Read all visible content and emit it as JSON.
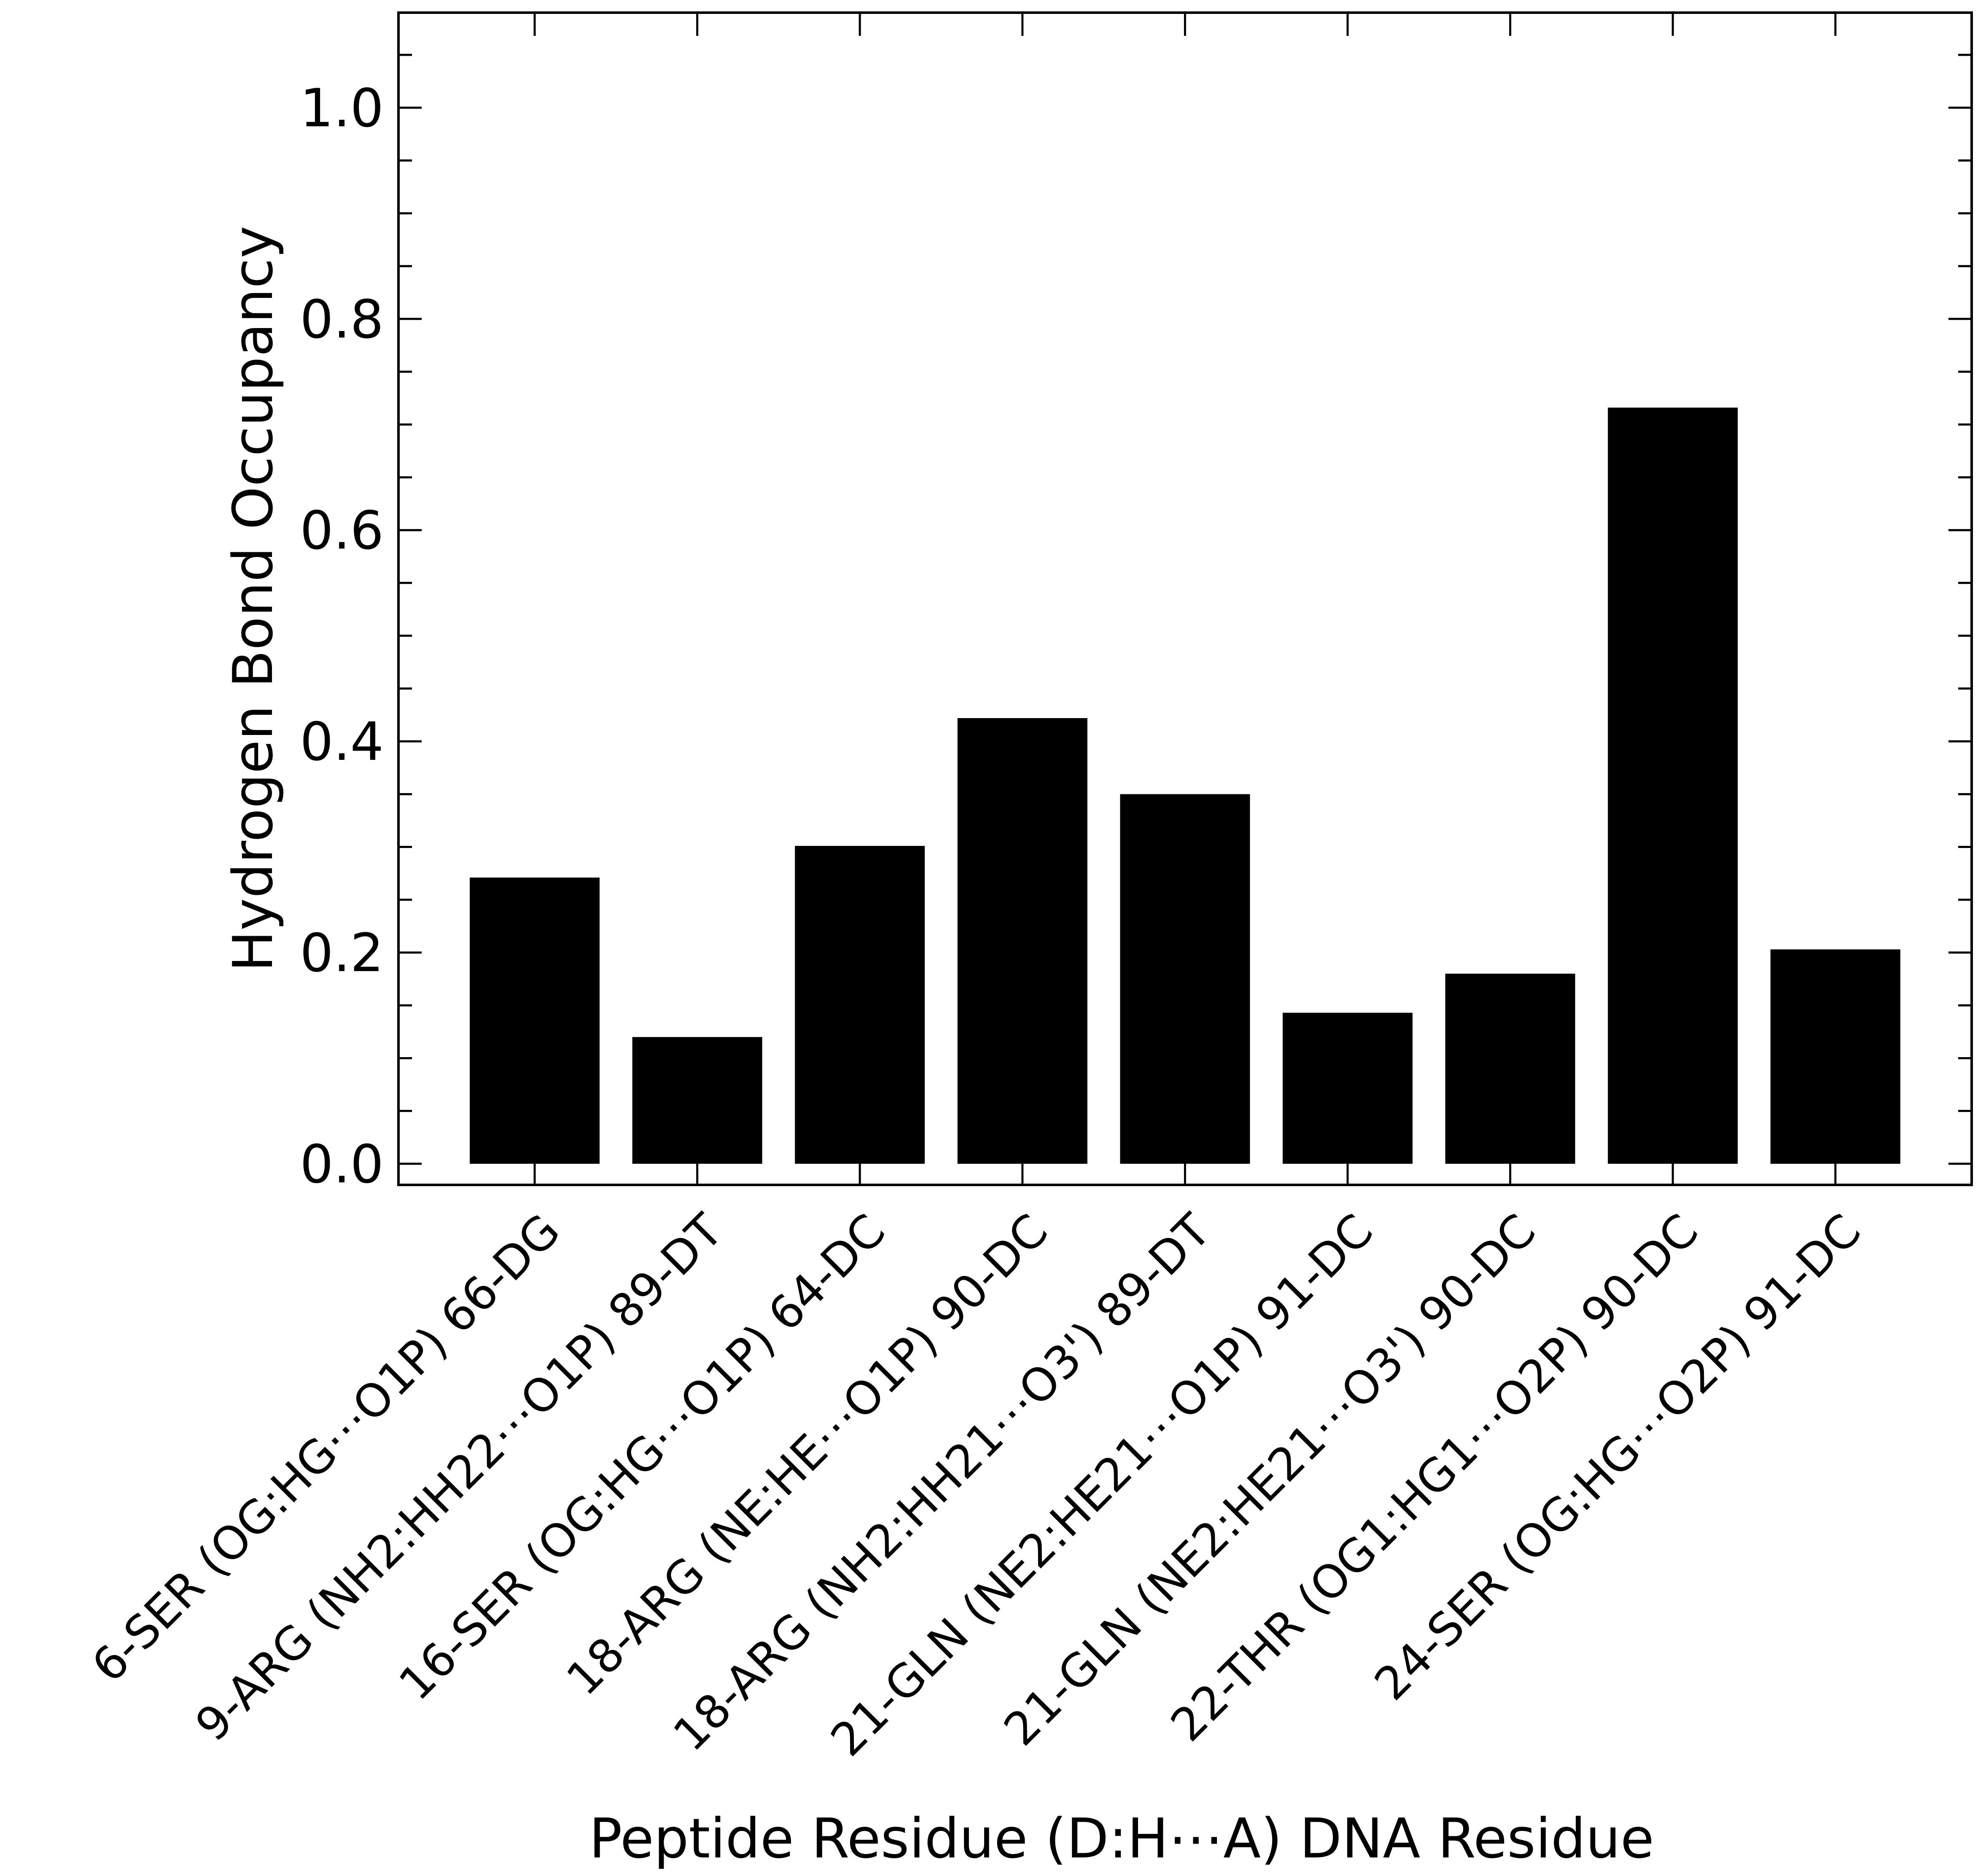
{
  "chart_data": {
    "type": "bar",
    "title": "",
    "xlabel": "Peptide Residue (D:H⋯A) DNA Residue",
    "ylabel": "Hydrogen Bond Occupancy",
    "categories": [
      "6-SER (OG:HG⋯O1P) 66-DG",
      "9-ARG (NH2:HH22⋯O1P) 89-DT",
      "16-SER (OG:HG⋯O1P) 64-DC",
      "18-ARG (NE:HE⋯O1P) 90-DC",
      "18-ARG (NH2:HH21⋯O3') 89-DT",
      "21-GLN (NE2:HE21⋯O1P) 91-DC",
      "21-GLN (NE2:HE21⋯O3') 90-DC",
      "22-THR (OG1:HG1⋯O2P) 90-DC",
      "24-SER (OG:HG⋯O2P) 91-DC"
    ],
    "values": [
      0.271,
      0.12,
      0.301,
      0.422,
      0.35,
      0.143,
      0.18,
      0.716,
      0.203
    ],
    "ylim": [
      -0.02,
      1.09
    ],
    "yticks": [
      0.0,
      0.2,
      0.4,
      0.6,
      0.8,
      1.0
    ],
    "ytick_labels": [
      "0.0",
      "0.2",
      "0.4",
      "0.6",
      "0.8",
      "1.0"
    ],
    "bar_color": "#000000",
    "grid": false,
    "legend": "none"
  }
}
